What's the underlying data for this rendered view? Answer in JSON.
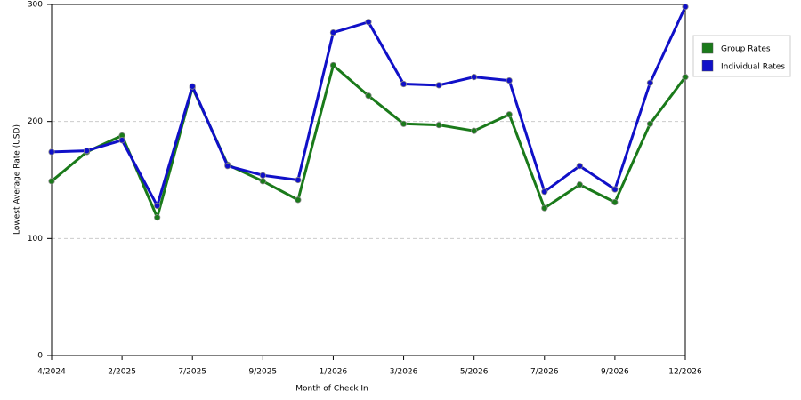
{
  "chart_data": {
    "type": "line",
    "x_label": "Month of Check In",
    "y_label": "Lowest Average Rate (USD)",
    "categories": [
      "4/2024",
      null,
      "2/2025",
      null,
      "7/2025",
      null,
      "9/2025",
      null,
      "1/2026",
      null,
      "3/2026",
      null,
      "5/2026",
      null,
      "7/2026",
      null,
      "9/2026",
      null,
      "12/2026"
    ],
    "series": [
      {
        "name": "Group Rates",
        "color": "#1a7a1a",
        "values": [
          149,
          174,
          188,
          118,
          229,
          163,
          149,
          133,
          248,
          222,
          198,
          197,
          192,
          206,
          126,
          146,
          131,
          198,
          238
        ]
      },
      {
        "name": "Individual Rates",
        "color": "#1010c8",
        "values": [
          174,
          175,
          184,
          128,
          230,
          162,
          154,
          150,
          276,
          285,
          232,
          231,
          238,
          235,
          140,
          162,
          142,
          233,
          298
        ]
      }
    ],
    "ylim": [
      0,
      300
    ],
    "yticks": [
      0,
      100,
      200,
      300
    ],
    "grid": true,
    "legend": "right"
  }
}
